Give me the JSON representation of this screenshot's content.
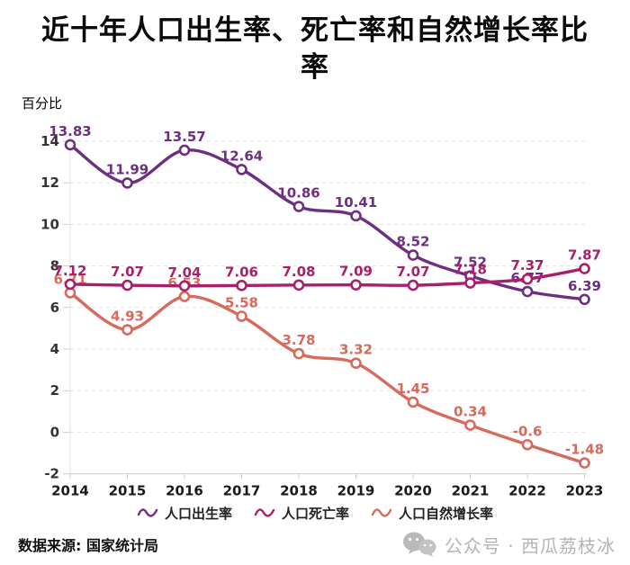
{
  "header": {
    "title": "近十年人口出生率、死亡率和自然增长率比率",
    "title_lines": [
      "近十年人口出生率、死亡率和自然增长率比",
      "率"
    ]
  },
  "chart_data": {
    "type": "line",
    "title": "近十年人口出生率、死亡率和自然增长率比率",
    "ylabel": "百分比",
    "xlabel": "",
    "categories": [
      "2014",
      "2015",
      "2016",
      "2017",
      "2018",
      "2019",
      "2020",
      "2021",
      "2022",
      "2023"
    ],
    "series": [
      {
        "key": "birth-rate",
        "name": "人口出生率",
        "color": "#6d2f7f",
        "values": [
          13.83,
          11.99,
          13.57,
          12.64,
          10.86,
          10.41,
          8.52,
          7.52,
          6.77,
          6.39
        ]
      },
      {
        "key": "death-rate",
        "name": "人口死亡率",
        "color": "#a8206a",
        "values": [
          7.12,
          7.07,
          7.04,
          7.06,
          7.08,
          7.09,
          7.07,
          7.18,
          7.37,
          7.87
        ]
      },
      {
        "key": "natural-growth-rate",
        "name": "人口自然增长率",
        "color": "#d66a5c",
        "values": [
          6.71,
          4.93,
          6.53,
          5.58,
          3.78,
          3.32,
          1.45,
          0.34,
          -0.6,
          -1.48
        ]
      }
    ],
    "ylim": [
      -2,
      14
    ],
    "ytick_step": 2,
    "grid": true,
    "line_style": "smooth",
    "marker": "hollow-circle",
    "legend_position": "bottom"
  },
  "footer": {
    "source_label": "数据来源: 国家统计局",
    "watermark": "公众号 · 西瓜荔枝冰"
  },
  "colors": {
    "grid": "#e0e0e0",
    "axis": "#cccccc",
    "background": "#ffffff"
  }
}
